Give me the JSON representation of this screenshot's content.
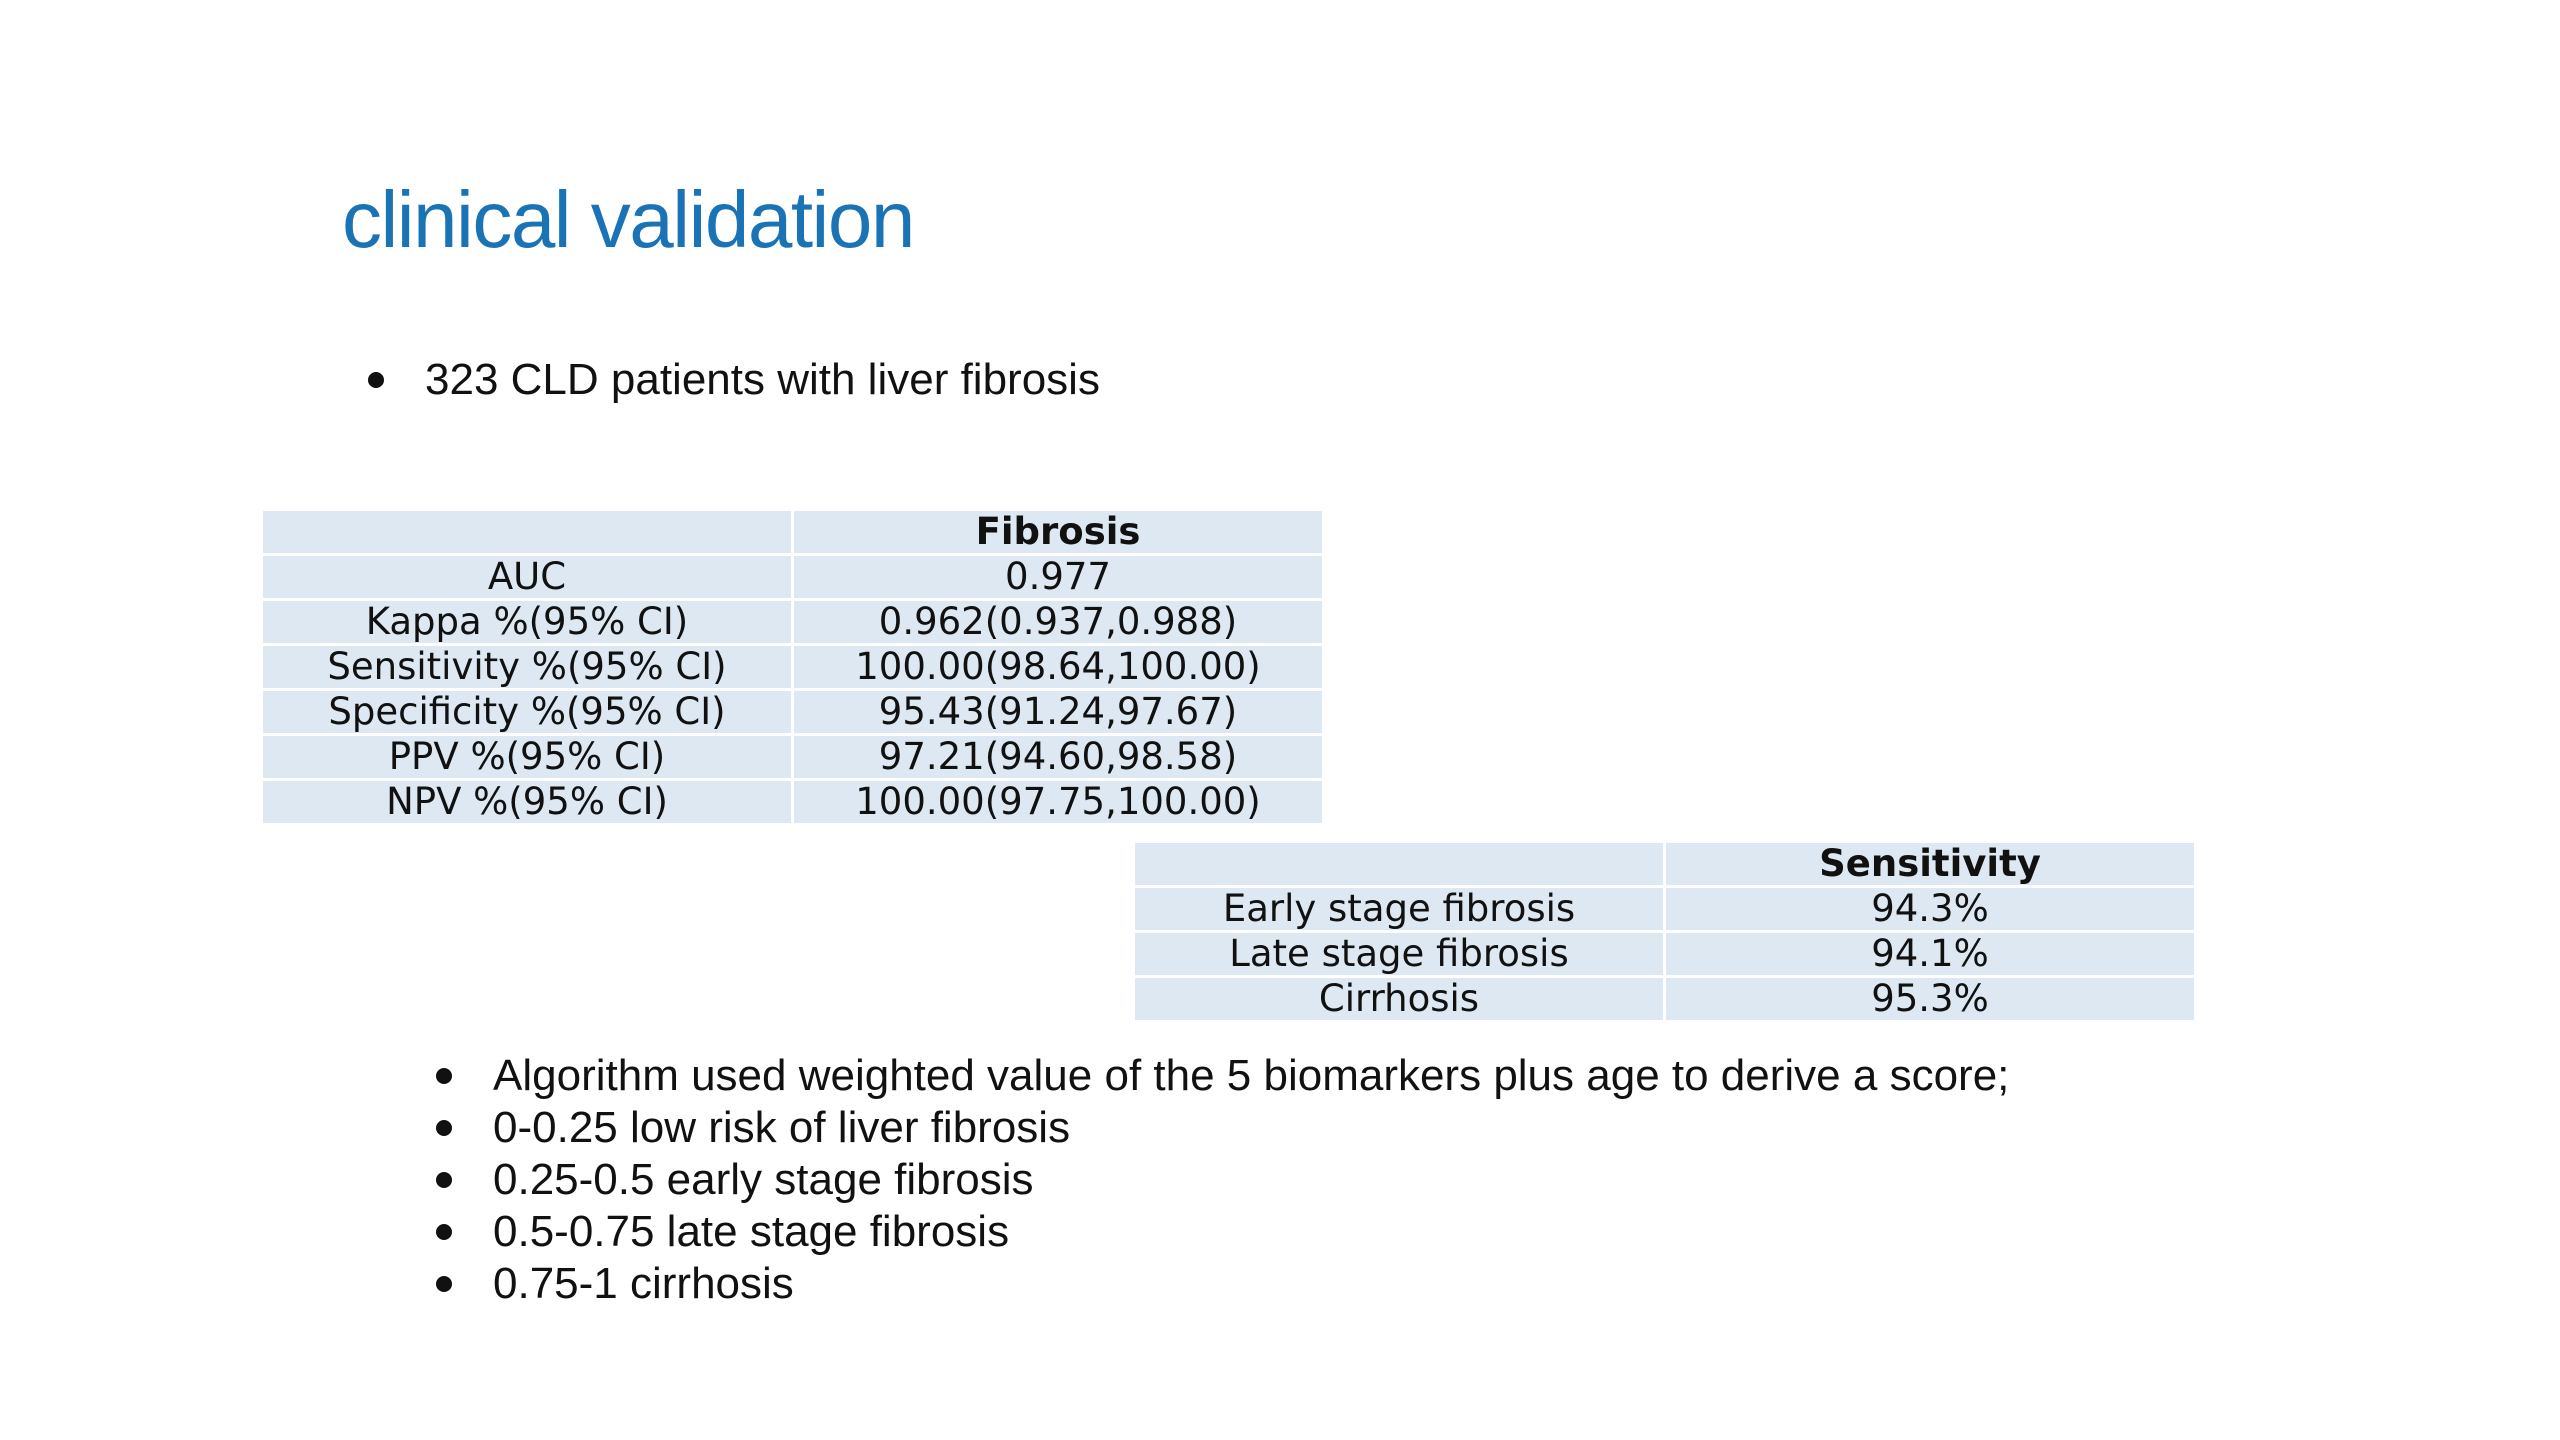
{
  "colors": {
    "title": "#1a73b5",
    "table_cell_bg": "#dde8f3",
    "text": "#111111"
  },
  "title": "clinical validation",
  "top_bullets": [
    "323 CLD patients with liver fibrosis"
  ],
  "fibrosis_table": {
    "header": [
      "",
      "Fibrosis"
    ],
    "rows": [
      [
        "AUC",
        "0.977"
      ],
      [
        "Kappa %(95% CI)",
        "0.962(0.937,0.988)"
      ],
      [
        "Sensitivity %(95% CI)",
        "100.00(98.64,100.00)"
      ],
      [
        "Specificity %(95% CI)",
        "95.43(91.24,97.67)"
      ],
      [
        "PPV %(95% CI)",
        "97.21(94.60,98.58)"
      ],
      [
        "NPV %(95% CI)",
        "100.00(97.75,100.00)"
      ]
    ]
  },
  "sensitivity_table": {
    "header": [
      "",
      "Sensitivity"
    ],
    "rows": [
      [
        "Early stage fibrosis",
        "94.3%"
      ],
      [
        "Late stage fibrosis",
        "94.1%"
      ],
      [
        "Cirrhosis",
        "95.3%"
      ]
    ]
  },
  "bottom_bullets": [
    "Algorithm used weighted value of the 5 biomarkers plus age to derive a score;",
    "0-0.25 low risk of liver fibrosis",
    "0.25-0.5 early stage fibrosis",
    "0.5-0.75 late stage fibrosis",
    "0.75-1 cirrhosis"
  ]
}
